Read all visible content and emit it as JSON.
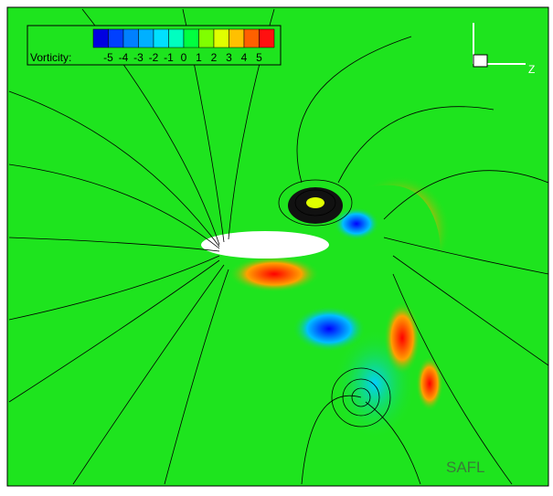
{
  "legend": {
    "label": "Vorticity:",
    "ticks": [
      -5,
      -4,
      -3,
      -2,
      -1,
      0,
      1,
      2,
      3,
      4,
      5
    ],
    "colors": [
      "#0000e0",
      "#0040ff",
      "#0080ff",
      "#00b0ff",
      "#00e0ff",
      "#00ffc0",
      "#00ff40",
      "#80ff00",
      "#e0ff00",
      "#ffc000",
      "#ff6000",
      "#ff1010"
    ]
  },
  "axes_indicator": {
    "label": "Z"
  },
  "watermark": "SAFL"
}
